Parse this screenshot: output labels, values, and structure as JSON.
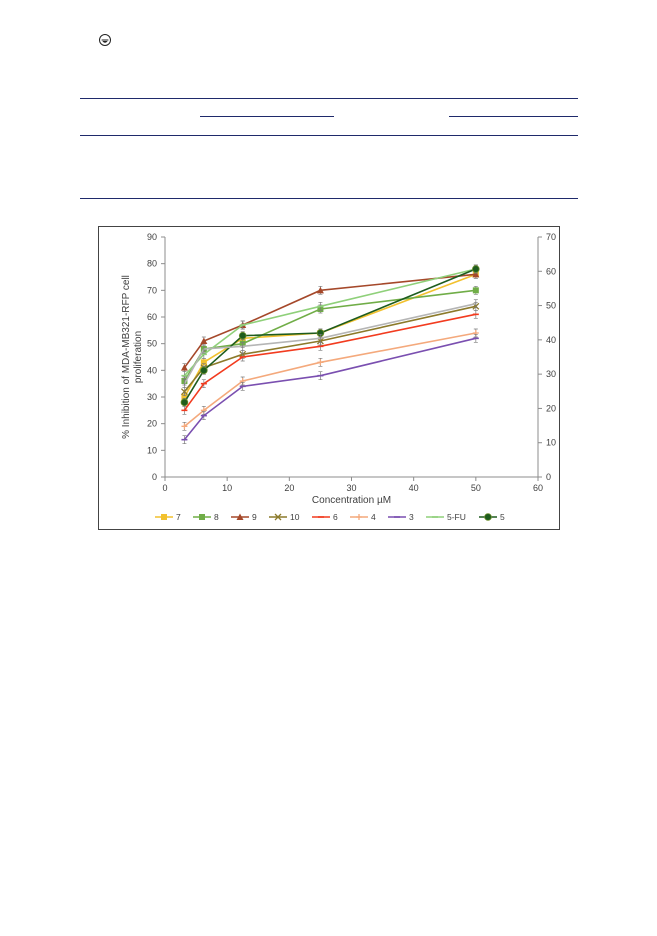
{
  "icons": {
    "corner": "circle-mark-icon"
  },
  "chart_data": {
    "type": "line",
    "title": "",
    "xlabel": "Concentration µM",
    "ylabel": "% Inhibition of MDA-MB321-RFP cell proliferation",
    "xlim": [
      0,
      60
    ],
    "ylim": [
      0,
      90
    ],
    "y2lim": [
      0,
      70
    ],
    "x_ticks": [
      0,
      10,
      20,
      30,
      40,
      50,
      60
    ],
    "y_ticks": [
      0,
      10,
      20,
      30,
      40,
      50,
      60,
      70,
      80,
      90
    ],
    "y2_ticks": [
      0,
      10,
      20,
      30,
      40,
      50,
      60,
      70
    ],
    "grid": false,
    "legend_position": "bottom",
    "x": [
      3.125,
      6.25,
      12.5,
      25,
      50
    ],
    "series": [
      {
        "name": "7",
        "color": "#f2c12e",
        "marker": "square",
        "values": [
          30,
          43,
          52,
          54,
          76
        ]
      },
      {
        "name": "8",
        "color": "#70ad47",
        "marker": "square",
        "values": [
          36,
          48,
          50,
          63,
          70
        ]
      },
      {
        "name": "9",
        "color": "#a5482a",
        "marker": "triangle",
        "values": [
          41,
          51,
          57,
          70,
          76
        ]
      },
      {
        "name": "10",
        "color": "#8c7a2a",
        "marker": "x",
        "values": [
          32,
          41,
          46,
          51,
          64
        ]
      },
      {
        "name": "6",
        "color": "#f23b1f",
        "marker": "dash",
        "values": [
          25,
          35,
          45,
          49,
          61
        ]
      },
      {
        "name": "4",
        "color": "#f4a97c",
        "marker": "plus",
        "values": [
          19,
          25,
          36,
          43,
          54
        ]
      },
      {
        "name": "3",
        "color": "#7a4fb0",
        "marker": "dash",
        "values": [
          14,
          23,
          34,
          38,
          52
        ]
      },
      {
        "name": "5-FU",
        "color": "#8fd07a",
        "marker": "dash",
        "values": [
          38,
          46,
          57,
          64,
          78
        ]
      },
      {
        "name": "5",
        "color": "#1e5c1e",
        "marker": "circle",
        "values": [
          28,
          40,
          53,
          54,
          78
        ]
      },
      {
        "name": "",
        "color": "#b5b5b5",
        "marker": "none",
        "values": [
          35,
          48,
          49,
          52,
          65
        ]
      }
    ]
  }
}
